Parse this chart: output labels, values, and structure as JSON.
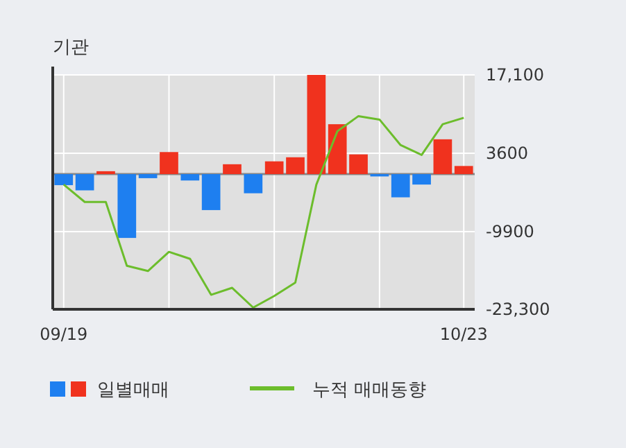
{
  "chart_data": {
    "type": "bar",
    "title": "기관",
    "categories": [
      "09/19",
      null,
      null,
      null,
      null,
      null,
      null,
      null,
      null,
      null,
      null,
      null,
      null,
      null,
      null,
      null,
      null,
      null,
      null,
      "10/23"
    ],
    "series": [
      {
        "name": "일별매매",
        "colors": [
          "#1e7ff0",
          "#1e7ff0",
          "#f0321e",
          "#1e7ff0",
          "#1e7ff0",
          "#f0321e",
          "#1e7ff0",
          "#1e7ff0",
          "#f0321e",
          "#1e7ff0",
          "#f0321e",
          "#f0321e",
          "#f0321e",
          "#f0321e",
          "#f0321e",
          "#1e7ff0",
          "#1e7ff0",
          "#1e7ff0",
          "#f0321e",
          "#f0321e"
        ],
        "values": [
          -1900,
          -2800,
          500,
          -11000,
          -700,
          3800,
          -1100,
          -6200,
          1700,
          -3300,
          2200,
          2900,
          17100,
          8600,
          3400,
          -400,
          -4000,
          -1800,
          6000,
          1400
        ]
      },
      {
        "name": "누적 매매동향",
        "type": "line",
        "color": "#6cbd2c",
        "values": [
          -1800,
          -4800,
          -4800,
          -15800,
          -16700,
          -13400,
          -14600,
          -20800,
          -19600,
          -23000,
          -21000,
          -18700,
          -1800,
          7400,
          10000,
          9400,
          5000,
          3300,
          8600,
          9700
        ]
      }
    ],
    "ylim": [
      -23300,
      17100
    ],
    "yticks": [
      {
        "value": 17100,
        "label": "17,100"
      },
      3600,
      -9900,
      {
        "value": -23300,
        "label": "-23,300"
      }
    ],
    "ref_lines": [
      {
        "axis": "y",
        "value": 0,
        "color": "#888888"
      }
    ],
    "grid": true,
    "legend": "bottom"
  }
}
